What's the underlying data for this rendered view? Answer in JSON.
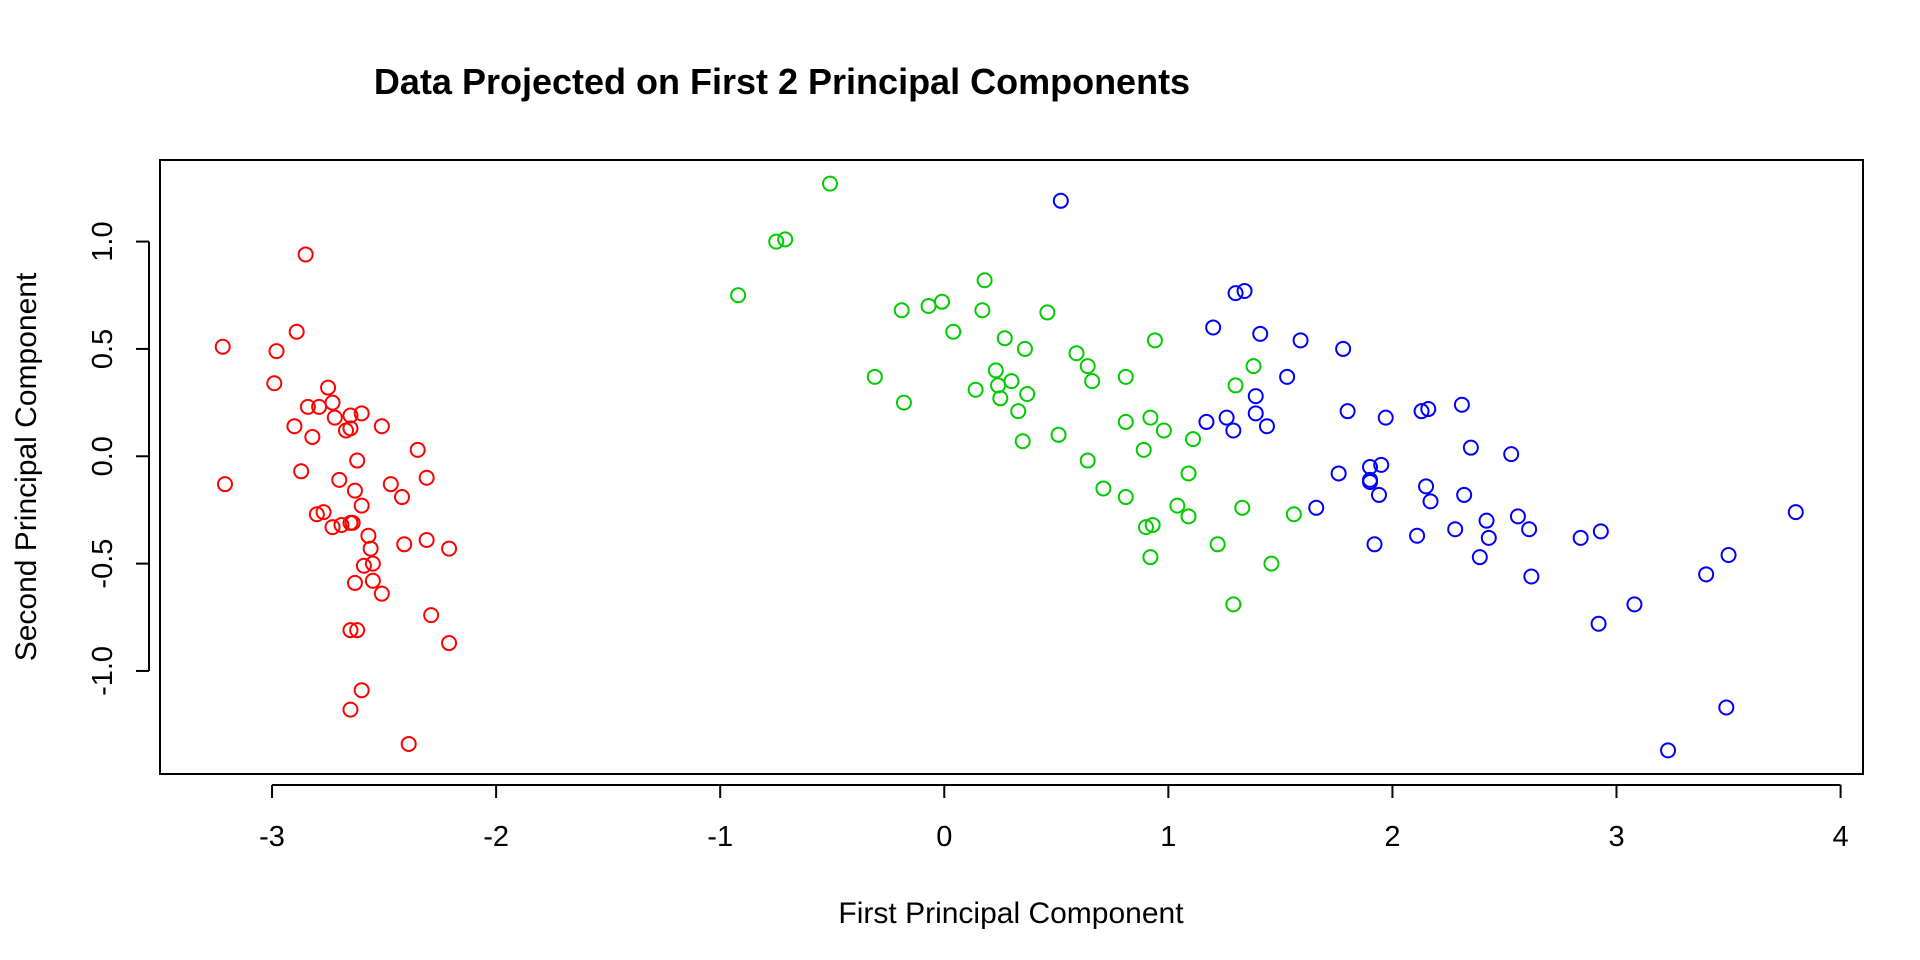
{
  "chart_data": {
    "type": "scatter",
    "title": "Data Projected on First 2  Principal Components",
    "xlabel": "First Principal Component",
    "ylabel": "Second Principal Component",
    "xlim": [
      -3.5,
      4.1
    ],
    "ylim": [
      -1.48,
      1.38
    ],
    "xticks": [
      -3,
      -2,
      -1,
      0,
      1,
      2,
      3,
      4
    ],
    "yticks": [
      -1.0,
      -0.5,
      0.0,
      0.5,
      1.0
    ],
    "ytick_labels": [
      "-1.0",
      "-0.5",
      "0.0",
      "0.5",
      "1.0"
    ],
    "grid": false,
    "legend": "none",
    "marker": "open-circle",
    "series": [
      {
        "color": "#ff0000",
        "points": [
          [
            -3.22,
            0.51
          ],
          [
            -3.21,
            -0.13
          ],
          [
            -2.98,
            0.49
          ],
          [
            -2.99,
            0.34
          ],
          [
            -2.9,
            0.14
          ],
          [
            -2.89,
            0.58
          ],
          [
            -2.85,
            0.94
          ],
          [
            -2.87,
            -0.07
          ],
          [
            -2.84,
            0.23
          ],
          [
            -2.82,
            0.09
          ],
          [
            -2.79,
            0.23
          ],
          [
            -2.8,
            -0.27
          ],
          [
            -2.77,
            -0.26
          ],
          [
            -2.75,
            0.32
          ],
          [
            -2.73,
            0.25
          ],
          [
            -2.72,
            0.18
          ],
          [
            -2.73,
            -0.33
          ],
          [
            -2.7,
            -0.11
          ],
          [
            -2.69,
            -0.32
          ],
          [
            -2.67,
            0.12
          ],
          [
            -2.65,
            0.19
          ],
          [
            -2.65,
            0.13
          ],
          [
            -2.65,
            -0.31
          ],
          [
            -2.64,
            -0.31
          ],
          [
            -2.63,
            -0.16
          ],
          [
            -2.62,
            -0.02
          ],
          [
            -2.6,
            0.2
          ],
          [
            -2.6,
            -0.23
          ],
          [
            -2.57,
            -0.37
          ],
          [
            -2.56,
            -0.43
          ],
          [
            -2.59,
            -0.51
          ],
          [
            -2.55,
            -0.5
          ],
          [
            -2.55,
            -0.58
          ],
          [
            -2.63,
            -0.59
          ],
          [
            -2.51,
            0.14
          ],
          [
            -2.51,
            -0.64
          ],
          [
            -2.65,
            -0.81
          ],
          [
            -2.62,
            -0.81
          ],
          [
            -2.6,
            -1.09
          ],
          [
            -2.65,
            -1.18
          ],
          [
            -2.47,
            -0.13
          ],
          [
            -2.42,
            -0.19
          ],
          [
            -2.41,
            -0.41
          ],
          [
            -2.39,
            -1.34
          ],
          [
            -2.35,
            0.03
          ],
          [
            -2.31,
            -0.1
          ],
          [
            -2.31,
            -0.39
          ],
          [
            -2.29,
            -0.74
          ],
          [
            -2.21,
            -0.43
          ],
          [
            -2.21,
            -0.87
          ]
        ]
      },
      {
        "color": "#00cc00",
        "points": [
          [
            -0.92,
            0.75
          ],
          [
            -0.75,
            1.0
          ],
          [
            -0.71,
            1.01
          ],
          [
            -0.51,
            1.27
          ],
          [
            -0.31,
            0.37
          ],
          [
            -0.19,
            0.68
          ],
          [
            -0.18,
            0.25
          ],
          [
            -0.07,
            0.7
          ],
          [
            -0.01,
            0.72
          ],
          [
            0.04,
            0.58
          ],
          [
            0.14,
            0.31
          ],
          [
            0.17,
            0.68
          ],
          [
            0.18,
            0.82
          ],
          [
            0.23,
            0.4
          ],
          [
            0.24,
            0.33
          ],
          [
            0.25,
            0.27
          ],
          [
            0.27,
            0.55
          ],
          [
            0.3,
            0.35
          ],
          [
            0.33,
            0.21
          ],
          [
            0.35,
            0.07
          ],
          [
            0.36,
            0.5
          ],
          [
            0.37,
            0.29
          ],
          [
            0.46,
            0.67
          ],
          [
            0.51,
            0.1
          ],
          [
            0.59,
            0.48
          ],
          [
            0.64,
            0.42
          ],
          [
            0.64,
            -0.02
          ],
          [
            0.66,
            0.35
          ],
          [
            0.71,
            -0.15
          ],
          [
            0.81,
            0.37
          ],
          [
            0.81,
            0.16
          ],
          [
            0.81,
            -0.19
          ],
          [
            0.89,
            0.03
          ],
          [
            0.9,
            -0.33
          ],
          [
            0.92,
            0.18
          ],
          [
            0.93,
            -0.32
          ],
          [
            0.92,
            -0.47
          ],
          [
            0.94,
            0.54
          ],
          [
            0.98,
            0.12
          ],
          [
            1.04,
            -0.23
          ],
          [
            1.09,
            -0.08
          ],
          [
            1.09,
            -0.28
          ],
          [
            1.11,
            0.08
          ],
          [
            1.22,
            -0.41
          ],
          [
            1.29,
            -0.69
          ],
          [
            1.3,
            0.33
          ],
          [
            1.33,
            -0.24
          ],
          [
            1.38,
            0.42
          ],
          [
            1.46,
            -0.5
          ],
          [
            1.56,
            -0.27
          ]
        ]
      },
      {
        "color": "#0000ff",
        "points": [
          [
            0.52,
            1.19
          ],
          [
            1.17,
            0.16
          ],
          [
            1.2,
            0.6
          ],
          [
            1.26,
            0.18
          ],
          [
            1.29,
            0.12
          ],
          [
            1.3,
            0.76
          ],
          [
            1.34,
            0.77
          ],
          [
            1.39,
            0.28
          ],
          [
            1.39,
            0.2
          ],
          [
            1.41,
            0.57
          ],
          [
            1.44,
            0.14
          ],
          [
            1.53,
            0.37
          ],
          [
            1.59,
            0.54
          ],
          [
            1.66,
            -0.24
          ],
          [
            1.76,
            -0.08
          ],
          [
            1.78,
            0.5
          ],
          [
            1.8,
            0.21
          ],
          [
            1.9,
            -0.05
          ],
          [
            1.9,
            -0.11
          ],
          [
            1.9,
            -0.12
          ],
          [
            1.92,
            -0.41
          ],
          [
            1.94,
            -0.18
          ],
          [
            1.95,
            -0.04
          ],
          [
            1.97,
            0.18
          ],
          [
            2.11,
            -0.37
          ],
          [
            2.13,
            0.21
          ],
          [
            2.15,
            -0.14
          ],
          [
            2.16,
            0.22
          ],
          [
            2.17,
            -0.21
          ],
          [
            2.28,
            -0.34
          ],
          [
            2.31,
            0.24
          ],
          [
            2.32,
            -0.18
          ],
          [
            2.35,
            0.04
          ],
          [
            2.39,
            -0.47
          ],
          [
            2.42,
            -0.3
          ],
          [
            2.43,
            -0.38
          ],
          [
            2.53,
            0.01
          ],
          [
            2.56,
            -0.28
          ],
          [
            2.61,
            -0.34
          ],
          [
            2.62,
            -0.56
          ],
          [
            2.84,
            -0.38
          ],
          [
            2.93,
            -0.35
          ],
          [
            2.92,
            -0.78
          ],
          [
            3.08,
            -0.69
          ],
          [
            3.23,
            -1.37
          ],
          [
            3.4,
            -0.55
          ],
          [
            3.49,
            -1.17
          ],
          [
            3.5,
            -0.46
          ],
          [
            3.8,
            -0.26
          ]
        ]
      }
    ]
  }
}
